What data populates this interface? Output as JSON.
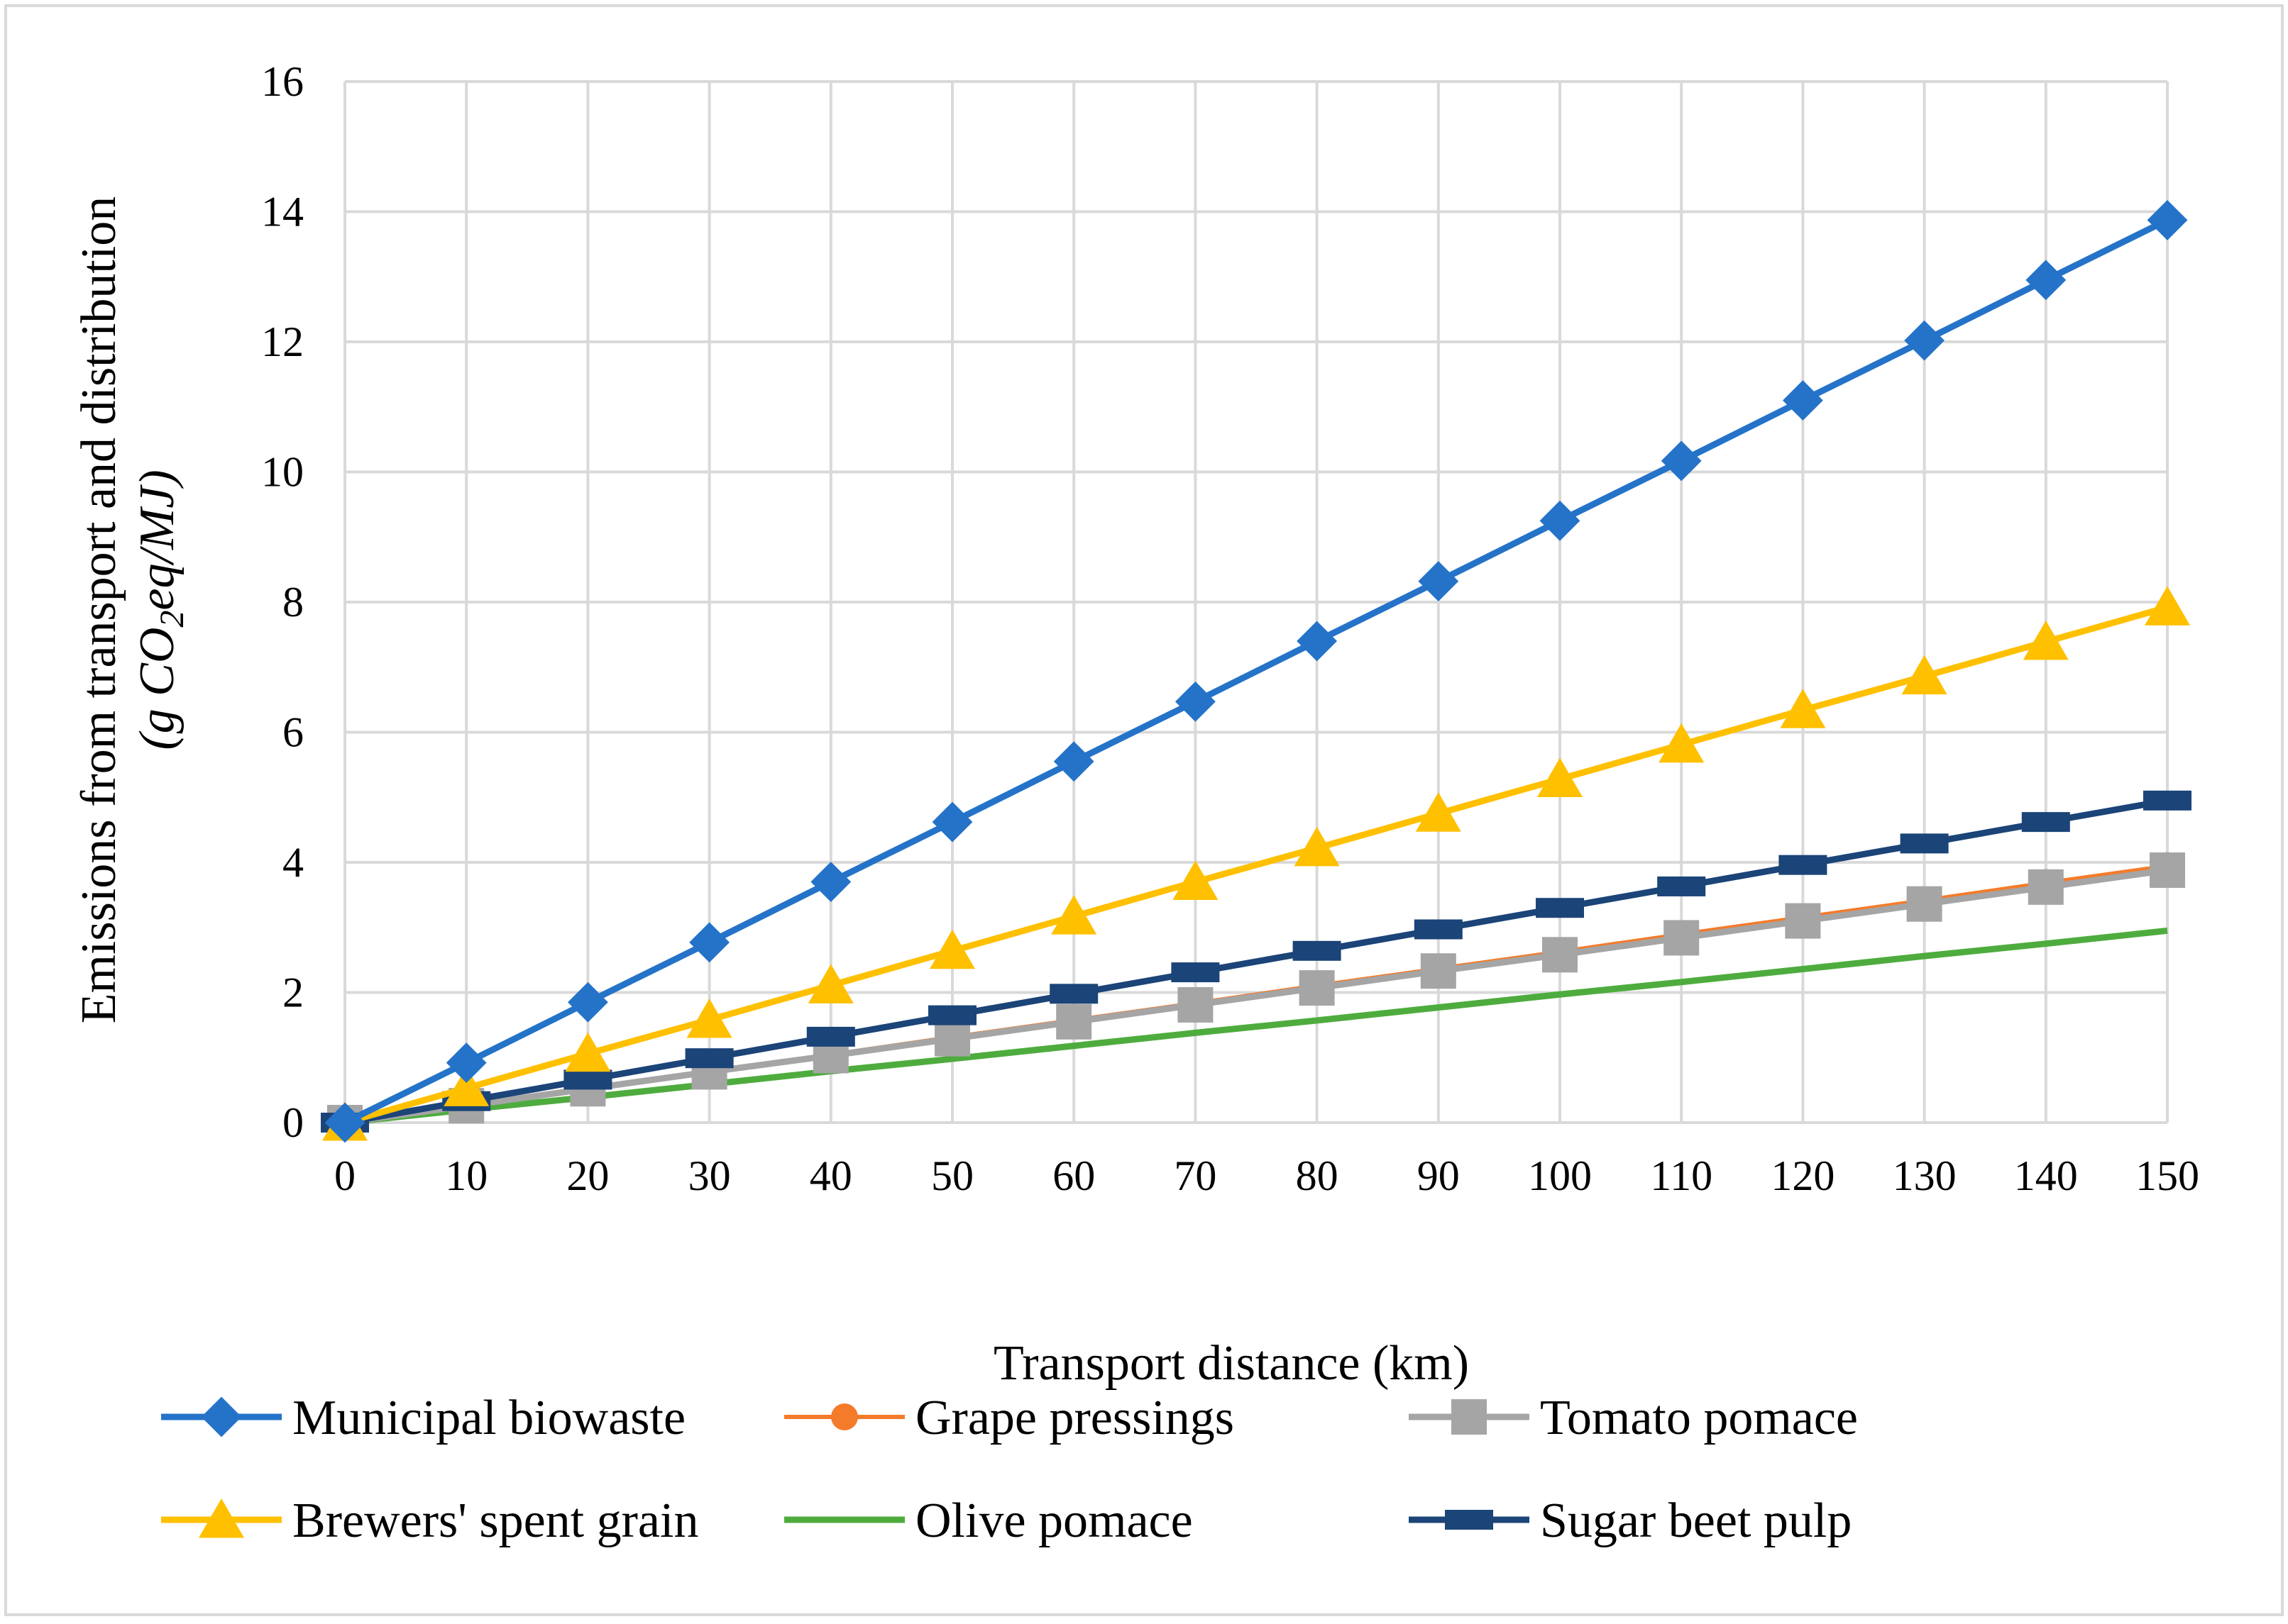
{
  "chart_data": {
    "type": "line",
    "title": "",
    "xlabel": "Transport distance (km)",
    "ylabel": {
      "line1": "Emissions from transport and distribution",
      "line2_open": "(g CO",
      "line2_sub": "2",
      "line2_close": "eq/MJ)"
    },
    "x": [
      0,
      10,
      20,
      30,
      40,
      50,
      60,
      70,
      80,
      90,
      100,
      110,
      120,
      130,
      140,
      150
    ],
    "xticks": [
      "0",
      "10",
      "20",
      "30",
      "40",
      "50",
      "60",
      "70",
      "80",
      "90",
      "100",
      "110",
      "120",
      "130",
      "140",
      "150"
    ],
    "ylim": [
      0,
      16
    ],
    "yticks": [
      "0",
      "2",
      "4",
      "6",
      "8",
      "10",
      "12",
      "14",
      "16"
    ],
    "grid": true,
    "legend_position": "bottom",
    "series": [
      {
        "name": "Municipal biowaste",
        "color": "#2473C9",
        "marker": "diamond",
        "values": [
          0,
          0.92,
          1.85,
          2.77,
          3.7,
          4.62,
          5.55,
          6.47,
          7.4,
          8.32,
          9.25,
          10.17,
          11.1,
          12.02,
          12.95,
          13.87
        ]
      },
      {
        "name": "Grape pressings",
        "color": "#F47B2A",
        "marker": "circle",
        "values": [
          0,
          0.26,
          0.53,
          0.79,
          1.05,
          1.32,
          1.58,
          1.84,
          2.11,
          2.37,
          2.63,
          2.9,
          3.16,
          3.42,
          3.69,
          3.95
        ]
      },
      {
        "name": "Tomato pomace",
        "color": "#A5A5A5",
        "marker": "square",
        "values": [
          0,
          0.26,
          0.52,
          0.78,
          1.03,
          1.29,
          1.55,
          1.81,
          2.07,
          2.33,
          2.58,
          2.84,
          3.1,
          3.36,
          3.62,
          3.88
        ]
      },
      {
        "name": "Brewers' spent grain",
        "color": "#FFC000",
        "marker": "triangle",
        "values": [
          0,
          0.53,
          1.06,
          1.58,
          2.11,
          2.64,
          3.17,
          3.7,
          4.22,
          4.75,
          5.28,
          5.81,
          6.34,
          6.86,
          7.39,
          7.92
        ]
      },
      {
        "name": "Olive pomace",
        "color": "#4EAC3E",
        "marker": "none",
        "values": [
          0,
          0.2,
          0.39,
          0.59,
          0.79,
          0.98,
          1.18,
          1.38,
          1.57,
          1.77,
          1.97,
          2.16,
          2.36,
          2.56,
          2.75,
          2.95
        ]
      },
      {
        "name": "Sugar beet pulp",
        "color": "#1B4478",
        "marker": "dash",
        "values": [
          0,
          0.33,
          0.66,
          0.99,
          1.32,
          1.65,
          1.98,
          2.31,
          2.64,
          2.97,
          3.3,
          3.63,
          3.96,
          4.29,
          4.62,
          4.95
        ]
      }
    ]
  }
}
